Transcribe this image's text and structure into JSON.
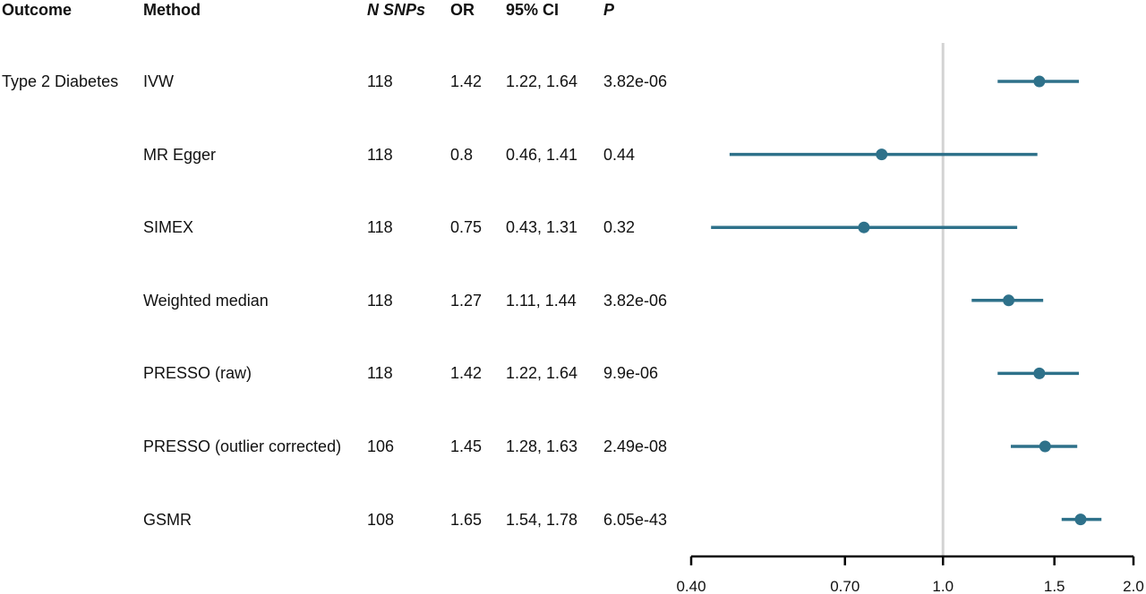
{
  "headers": {
    "outcome": "Outcome",
    "method": "Method",
    "nsnps": "N SNPs",
    "or": "OR",
    "ci": "95% CI",
    "p": "P"
  },
  "outcome_label": "Type 2 Diabetes",
  "rows": [
    {
      "method": "IVW",
      "nsnps": "118",
      "or": "1.42",
      "ci": "1.22, 1.64",
      "p": "3.82e-06"
    },
    {
      "method": "MR Egger",
      "nsnps": "118",
      "or": "0.8",
      "ci": "0.46, 1.41",
      "p": "0.44"
    },
    {
      "method": "SIMEX",
      "nsnps": "118",
      "or": "0.75",
      "ci": "0.43, 1.31",
      "p": "0.32"
    },
    {
      "method": "Weighted median",
      "nsnps": "118",
      "or": "1.27",
      "ci": "1.11, 1.44",
      "p": "3.82e-06"
    },
    {
      "method": "PRESSO (raw)",
      "nsnps": "118",
      "or": "1.42",
      "ci": "1.22, 1.64",
      "p": "9.9e-06"
    },
    {
      "method": "PRESSO (outlier corrected)",
      "nsnps": "106",
      "or": "1.45",
      "ci": "1.28, 1.63",
      "p": "2.49e-08"
    },
    {
      "method": "GSMR",
      "nsnps": "108",
      "or": "1.65",
      "ci": "1.54, 1.78",
      "p": "6.05e-43"
    }
  ],
  "chart_data": {
    "type": "forest",
    "x_scale": "log",
    "xlim": [
      0.4,
      2.0
    ],
    "reference_line": 1.0,
    "xticks": [
      "0.40",
      "0.70",
      "1.0",
      "1.5",
      "2.0"
    ],
    "series": [
      {
        "points": [
          {
            "or": 1.42,
            "lo": 1.22,
            "hi": 1.64
          },
          {
            "or": 0.8,
            "lo": 0.46,
            "hi": 1.41
          },
          {
            "or": 0.75,
            "lo": 0.43,
            "hi": 1.31
          },
          {
            "or": 1.27,
            "lo": 1.11,
            "hi": 1.44
          },
          {
            "or": 1.42,
            "lo": 1.22,
            "hi": 1.64
          },
          {
            "or": 1.45,
            "lo": 1.28,
            "hi": 1.63
          },
          {
            "or": 1.65,
            "lo": 1.54,
            "hi": 1.78
          }
        ]
      }
    ],
    "colors": {
      "point": "#2e718a",
      "reference": "#d3d3d3",
      "axis": "#000000"
    }
  }
}
